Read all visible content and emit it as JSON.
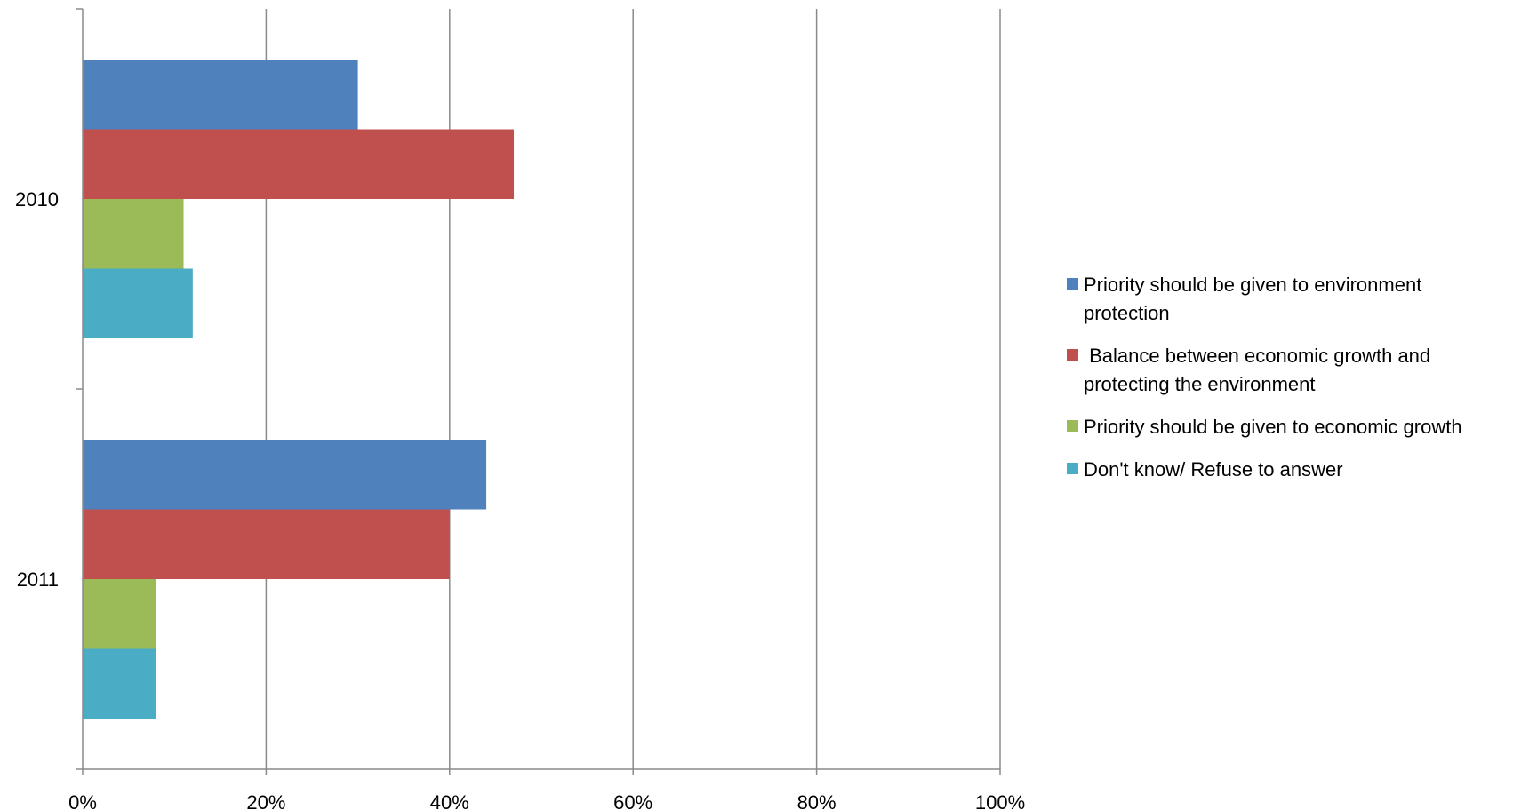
{
  "chart_data": {
    "type": "bar",
    "orientation": "horizontal",
    "categories": [
      "2010",
      "2011"
    ],
    "series": [
      {
        "name": "Priority should be given to environment protection",
        "values": [
          30,
          44
        ],
        "color": "#4F81BD"
      },
      {
        "name": " Balance between economic growth and protecting the environment",
        "values": [
          47,
          40
        ],
        "color": "#C0504D"
      },
      {
        "name": "Priority should be given to economic growth",
        "values": [
          11,
          8
        ],
        "color": "#9BBB59"
      },
      {
        "name": "Don't know/ Refuse to answer",
        "values": [
          12,
          8
        ],
        "color": "#4BACC6"
      }
    ],
    "x_ticks": [
      "0%",
      "20%",
      "40%",
      "60%",
      "80%",
      "100%"
    ],
    "xlim": [
      0,
      100
    ],
    "unit": "%",
    "grid": true,
    "legend_position": "right",
    "title": "",
    "xlabel": "",
    "ylabel": ""
  }
}
